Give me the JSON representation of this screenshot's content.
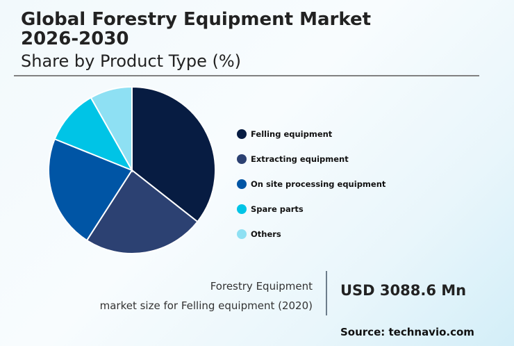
{
  "header": {
    "title_line1": "Global Forestry Equipment Market",
    "title_line2": "2026-2030",
    "subtitle": "Share by Product Type (%)"
  },
  "chart_data": {
    "type": "pie",
    "title": "Global Forestry Equipment Market 2026-2030",
    "subtitle": "Share by Product Type (%)",
    "categories": [
      "Felling equipment",
      "Extracting equipment",
      "On site processing equipment",
      "Spare parts",
      "Others"
    ],
    "values": [
      35.6,
      23.5,
      22.0,
      10.7,
      8.2
    ],
    "colors": [
      "#071c42",
      "#2c4172",
      "#0055a5",
      "#00c4e6",
      "#8ee0f3"
    ],
    "legend_position": "right",
    "start_angle": "top, clockwise"
  },
  "legend": {
    "items": [
      {
        "label": "Felling equipment",
        "color": "#071c42"
      },
      {
        "label": "Extracting equipment",
        "color": "#2c4172"
      },
      {
        "label": "On site processing equipment",
        "color": "#0055a5"
      },
      {
        "label": "Spare parts",
        "color": "#00c4e6"
      },
      {
        "label": "Others",
        "color": "#8ee0f3"
      }
    ]
  },
  "kpi": {
    "label_line1": "Forestry Equipment",
    "label_line2": "market size for Felling equipment (2020)",
    "value": "USD 3088.6 Mn"
  },
  "source": "Source: technavio.com"
}
